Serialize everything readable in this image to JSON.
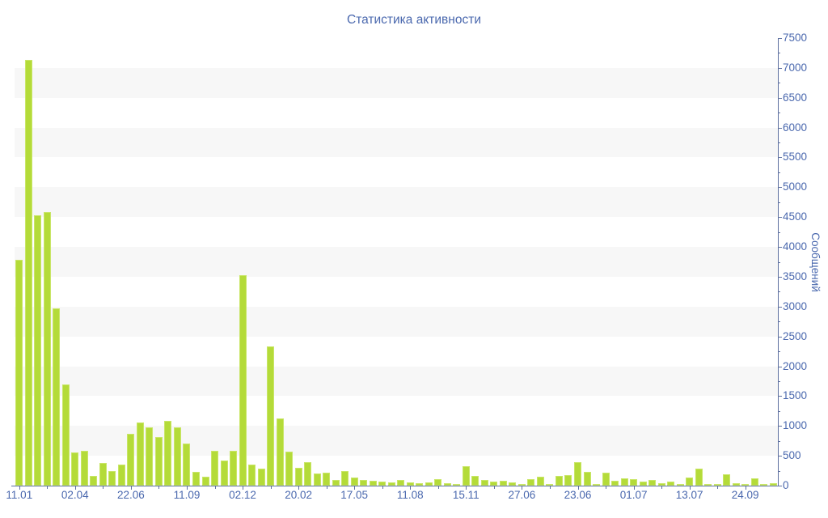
{
  "title": "Статистика активности",
  "colors": {
    "bar_fill": "#b4db39",
    "bar_border": "#c9e668",
    "text": "#4a68ae",
    "axis": "#5d6f9f",
    "stripe": "#f7f7f7",
    "background": "#ffffff"
  },
  "chart_data": {
    "type": "bar",
    "title": "Статистика активности",
    "xlabel": "",
    "ylabel": "Сообщений",
    "ylim": [
      0,
      7500
    ],
    "y_tick_step": 500,
    "y_minor_tick_step": 250,
    "grid": "horizontal-stripes",
    "legend_position": "none",
    "bar_count": 82,
    "x_tick_indices": [
      0,
      6,
      12,
      18,
      24,
      30,
      36,
      42,
      48,
      54,
      60,
      66,
      72,
      78
    ],
    "x_tick_labels": [
      "11.01",
      "02.04",
      "22.06",
      "11.09",
      "02.12",
      "20.02",
      "17.05",
      "11.08",
      "15.11",
      "27.06",
      "23.06",
      "01.07",
      "13.07",
      "24.09"
    ],
    "y_tick_labels": [
      "0",
      "500",
      "1000",
      "1500",
      "2000",
      "2500",
      "3000",
      "3500",
      "4000",
      "4500",
      "5000",
      "5500",
      "6000",
      "6500",
      "7000",
      "7500"
    ],
    "values": [
      3790,
      7130,
      4530,
      4590,
      2970,
      1700,
      560,
      590,
      170,
      380,
      240,
      360,
      870,
      1060,
      980,
      810,
      1090,
      980,
      710,
      230,
      150,
      580,
      420,
      590,
      3530,
      350,
      290,
      2330,
      1130,
      570,
      300,
      400,
      210,
      220,
      90,
      250,
      140,
      90,
      80,
      70,
      60,
      90,
      50,
      40,
      60,
      110,
      40,
      30,
      330,
      160,
      100,
      70,
      85,
      60,
      20,
      115,
      155,
      30,
      165,
      175,
      390,
      225,
      30,
      215,
      85,
      125,
      110,
      70,
      90,
      40,
      65,
      20,
      140,
      280,
      20,
      30,
      185,
      35,
      25,
      120,
      30,
      45
    ]
  }
}
